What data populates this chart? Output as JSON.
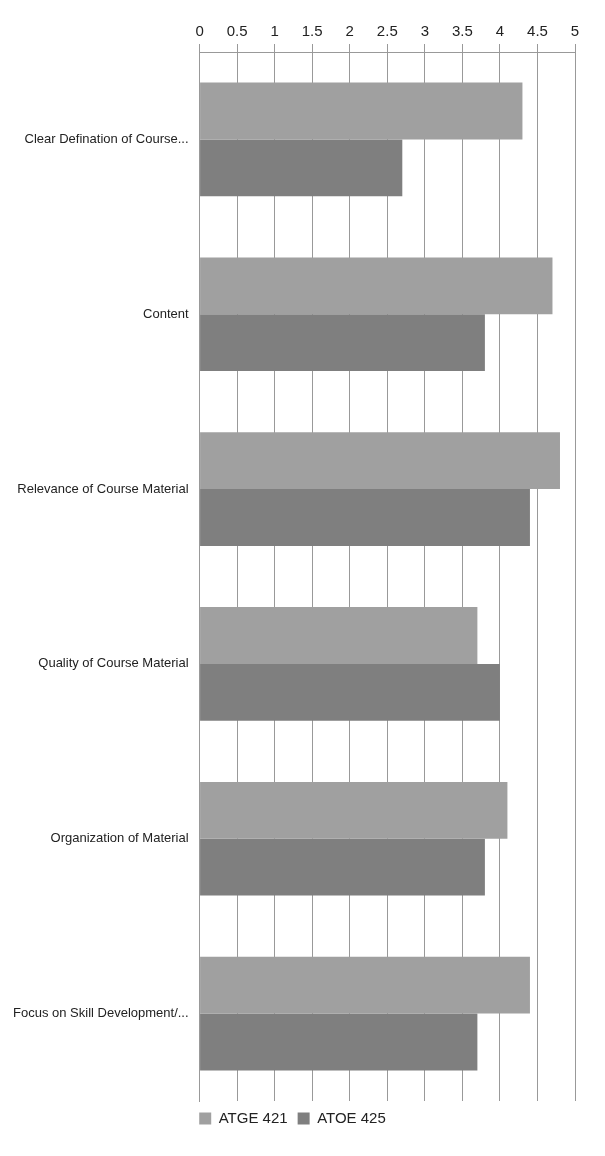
{
  "chart_data": {
    "type": "bar",
    "orientation": "horizontal",
    "categories": [
      "Clear Defination of Course...",
      "Content",
      "Relevance of Course Material",
      "Quality of Course Material",
      "Organization of Material",
      "Focus on Skill Development/..."
    ],
    "series": [
      {
        "name": "ATGE 421",
        "color": "#a0a0a0",
        "values": [
          4.3,
          4.7,
          4.8,
          3.7,
          4.1,
          4.4
        ]
      },
      {
        "name": "ATOE 425",
        "color": "#7f7f7f",
        "values": [
          2.7,
          3.8,
          4.4,
          4.0,
          3.8,
          3.7
        ]
      }
    ],
    "xlim": [
      0,
      5
    ],
    "xticks": [
      0,
      0.5,
      1,
      1.5,
      2,
      2.5,
      3,
      3.5,
      4,
      4.5,
      5
    ],
    "grid": "x",
    "legend": "bottom"
  }
}
